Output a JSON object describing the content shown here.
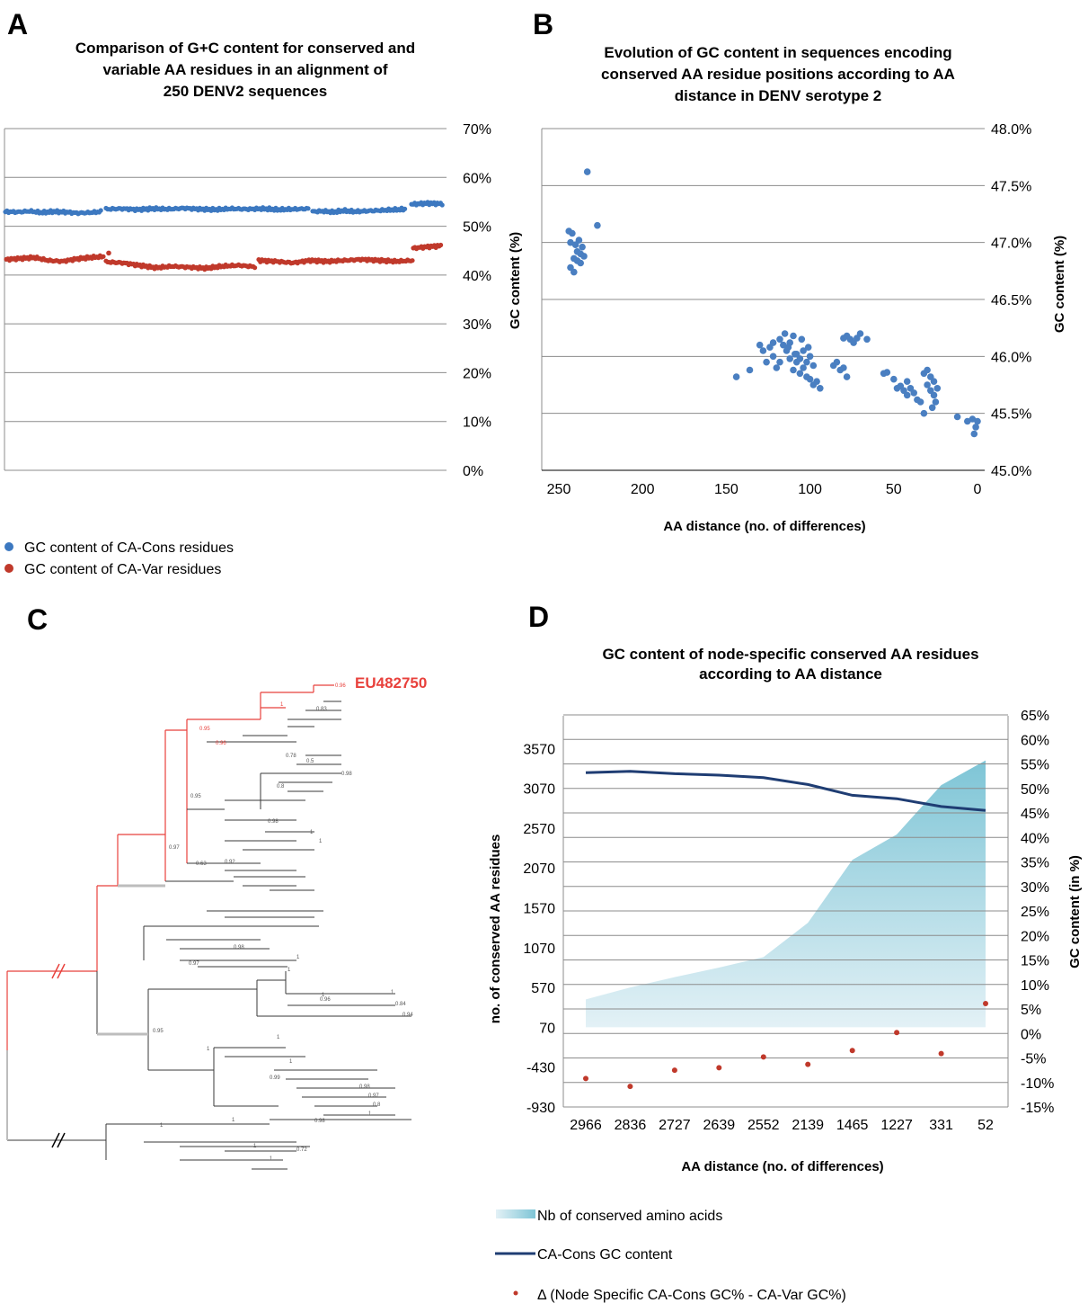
{
  "panels": {
    "a": {
      "letter": "A",
      "title": [
        "Comparison of G+C content for conserved and",
        "variable AA residues in an alignment of",
        "250 DENV2 sequences"
      ]
    },
    "b": {
      "letter": "B",
      "title": [
        "Evolution of GC content in sequences encoding",
        "conserved AA residue positions according to AA",
        "distance in DENV serotype 2"
      ]
    },
    "c": {
      "letter": "C",
      "highlight_label": "EU482750",
      "node_labels": [
        "0.96",
        "1",
        "0.95",
        "0.96",
        "0.97",
        "0.95",
        "0.78",
        "0.5",
        "0.92",
        "0.63",
        "0.98",
        "0.8",
        "0.98",
        "0.97",
        "0.95",
        "1",
        "1",
        "1",
        "1",
        "1",
        "1",
        "1",
        "1",
        "0.84",
        "0.94",
        "0.98",
        "0.97",
        "0.8",
        "0.96",
        "0.99",
        "0.98",
        "0.72",
        "0.83",
        "0.98",
        "1",
        "1",
        "1",
        "1",
        "1",
        "1"
      ]
    },
    "d": {
      "letter": "D",
      "title": [
        "GC content of node-specific conserved AA residues",
        "according to AA distance"
      ]
    }
  },
  "colors": {
    "cons_blue": "#3c78c0",
    "var_red": "#c0392b",
    "scatter_blue": "#4a7fc1",
    "line_navy": "#1f3d73",
    "area_top": "#7ec5d6",
    "area_bottom": "#e3f1f6",
    "tree_red": "#e8413c",
    "grid": "#8c8c8c"
  },
  "legend_a": [
    "GC content of CA-Cons residues",
    "GC content of CA-Var residues"
  ],
  "legend_d": [
    "Nb of conserved amino acids",
    "CA-Cons GC content",
    "Δ (Node Specific CA-Cons GC% - CA-Var GC%)"
  ],
  "chart_data": [
    {
      "type": "scatter",
      "title": "Comparison of G+C content for conserved and variable AA residues in an alignment of 250 DENV2 sequences",
      "xlabel": "",
      "ylabel": "",
      "ylim": [
        0,
        0.7
      ],
      "y_ticks": [
        "0%",
        "10%",
        "20%",
        "30%",
        "40%",
        "50%",
        "60%",
        "70%"
      ],
      "grid": true,
      "legend": "bottom-left",
      "series": [
        {
          "name": "GC content of CA-Cons residues",
          "y_by_segment": [
            [
              0.53,
              0.529,
              0.531,
              0.528,
              0.53,
              0.529,
              0.527,
              0.528,
              0.53
            ],
            [
              0.535,
              0.536,
              0.534,
              0.536,
              0.535,
              0.537,
              0.535,
              0.534,
              0.536,
              0.535,
              0.536,
              0.534,
              0.535,
              0.536
            ],
            [
              0.53,
              0.531,
              0.529,
              0.532,
              0.53,
              0.531,
              0.532,
              0.533,
              0.534,
              0.535
            ],
            [
              0.545,
              0.547,
              0.546
            ]
          ]
        },
        {
          "name": "GC content of CA-Var residues",
          "y_by_segment": [
            [
              0.432,
              0.434,
              0.436,
              0.43,
              0.428,
              0.433,
              0.436,
              0.438
            ],
            [
              0.427,
              0.425,
              0.42,
              0.415,
              0.418,
              0.416,
              0.414,
              0.418,
              0.42,
              0.417
            ],
            [
              0.43,
              0.428,
              0.425,
              0.43,
              0.428,
              0.43,
              0.432,
              0.43,
              0.428,
              0.43
            ],
            [
              0.455,
              0.458,
              0.46
            ]
          ]
        }
      ]
    },
    {
      "type": "scatter",
      "title": "Evolution of GC content in sequences encoding conserved AA residue positions according to AA distance in DENV serotype 2",
      "xlabel": "AA distance (no. of differences)",
      "ylabel": "GC content (%)",
      "y2label": "GC content (%)",
      "xlim": [
        265,
        0
      ],
      "x_ticks": [
        "250",
        "200",
        "150",
        "100",
        "50",
        "0"
      ],
      "ylim": [
        45.0,
        48.0
      ],
      "y_ticks": [
        "45.0%",
        "45.5%",
        "46.0%",
        "46.5%",
        "47.0%",
        "47.5%",
        "48.0%"
      ],
      "grid": true,
      "series": [
        {
          "name": "",
          "points": [
            [
              233,
              47.62
            ],
            [
              227,
              47.15
            ],
            [
              244,
              47.1
            ],
            [
              242,
              47.08
            ],
            [
              238,
              47.02
            ],
            [
              243,
              47.0
            ],
            [
              240,
              46.98
            ],
            [
              236,
              46.96
            ],
            [
              237,
              46.9
            ],
            [
              239,
              46.92
            ],
            [
              241,
              46.86
            ],
            [
              235,
              46.88
            ],
            [
              239,
              46.84
            ],
            [
              237,
              46.82
            ],
            [
              243,
              46.78
            ],
            [
              241,
              46.74
            ],
            [
              128,
              46.05
            ],
            [
              124,
              46.08
            ],
            [
              122,
              46.12
            ],
            [
              118,
              46.15
            ],
            [
              116,
              46.1
            ],
            [
              114,
              46.05
            ],
            [
              112,
              46.12
            ],
            [
              110,
              46.18
            ],
            [
              108,
              46.02
            ],
            [
              106,
              45.98
            ],
            [
              104,
              46.05
            ],
            [
              102,
              45.95
            ],
            [
              100,
              46.0
            ],
            [
              98,
              45.92
            ],
            [
              112,
              45.98
            ],
            [
              110,
              45.88
            ],
            [
              108,
              45.95
            ],
            [
              106,
              45.85
            ],
            [
              104,
              45.9
            ],
            [
              102,
              45.82
            ],
            [
              100,
              45.8
            ],
            [
              98,
              45.75
            ],
            [
              96,
              45.78
            ],
            [
              120,
              45.9
            ],
            [
              122,
              46.0
            ],
            [
              126,
              45.95
            ],
            [
              136,
              45.88
            ],
            [
              144,
              45.82
            ],
            [
              130,
              46.1
            ],
            [
              118,
              45.95
            ],
            [
              115,
              46.2
            ],
            [
              105,
              46.15
            ],
            [
              113,
              46.08
            ],
            [
              109,
              46.02
            ],
            [
              101,
              46.08
            ],
            [
              86,
              45.92
            ],
            [
              84,
              45.95
            ],
            [
              82,
              45.88
            ],
            [
              80,
              45.9
            ],
            [
              78,
              45.82
            ],
            [
              94,
              45.72
            ],
            [
              78,
              46.18
            ],
            [
              76,
              46.15
            ],
            [
              74,
              46.12
            ],
            [
              72,
              46.16
            ],
            [
              70,
              46.2
            ],
            [
              80,
              46.16
            ],
            [
              66,
              46.15
            ],
            [
              56,
              45.85
            ],
            [
              54,
              45.86
            ],
            [
              50,
              45.8
            ],
            [
              48,
              45.72
            ],
            [
              44,
              45.7
            ],
            [
              42,
              45.66
            ],
            [
              40,
              45.72
            ],
            [
              38,
              45.68
            ],
            [
              36,
              45.62
            ],
            [
              34,
              45.6
            ],
            [
              32,
              45.85
            ],
            [
              30,
              45.88
            ],
            [
              28,
              45.82
            ],
            [
              26,
              45.78
            ],
            [
              24,
              45.72
            ],
            [
              28,
              45.7
            ],
            [
              26,
              45.66
            ],
            [
              30,
              45.75
            ],
            [
              32,
              45.5
            ],
            [
              27,
              45.55
            ],
            [
              25,
              45.6
            ],
            [
              46,
              45.74
            ],
            [
              42,
              45.78
            ],
            [
              12,
              45.47
            ],
            [
              6,
              45.43
            ],
            [
              3,
              45.45
            ],
            [
              1,
              45.38
            ],
            [
              0,
              45.43
            ],
            [
              2,
              45.32
            ]
          ]
        }
      ]
    },
    {
      "type": "area",
      "title": "GC content of node-specific conserved AA residues according to AA distance",
      "xlabel": "AA distance (no. of differences)",
      "ylabel": "no. of conserved AA residues",
      "y2label": "GC content (in %)",
      "categories": [
        "2966",
        "2836",
        "2727",
        "2639",
        "2552",
        "2139",
        "1465",
        "1227",
        "331",
        "52"
      ],
      "ylim": [
        -930,
        4070
      ],
      "y_ticks": [
        "-930",
        "-430",
        "70",
        "570",
        "1070",
        "1570",
        "2070",
        "2570",
        "3070",
        "3570"
      ],
      "y2lim": [
        -0.15,
        0.65
      ],
      "y2_ticks": [
        "-15%",
        "-10%",
        "-5%",
        "0%",
        "5%",
        "10%",
        "15%",
        "20%",
        "25%",
        "30%",
        "35%",
        "40%",
        "45%",
        "50%",
        "55%",
        "60%",
        "65%"
      ],
      "grid": true,
      "legend": "bottom-left",
      "series": [
        {
          "name": "Nb of conserved amino acids",
          "axis": "left",
          "values": [
            420,
            570,
            700,
            820,
            950,
            1380,
            2170,
            2490,
            3110,
            3420
          ]
        },
        {
          "name": "CA-Cons GC content",
          "axis": "right",
          "values": [
            0.532,
            0.535,
            0.53,
            0.527,
            0.522,
            0.508,
            0.486,
            0.479,
            0.463,
            0.455
          ]
        },
        {
          "name": "Δ (Node Specific CA-Cons GC% - CA-Var GC%)",
          "axis": "right",
          "values": [
            -0.092,
            -0.108,
            -0.075,
            -0.07,
            -0.048,
            -0.063,
            -0.035,
            0.002,
            -0.041,
            0.061
          ]
        }
      ]
    }
  ]
}
